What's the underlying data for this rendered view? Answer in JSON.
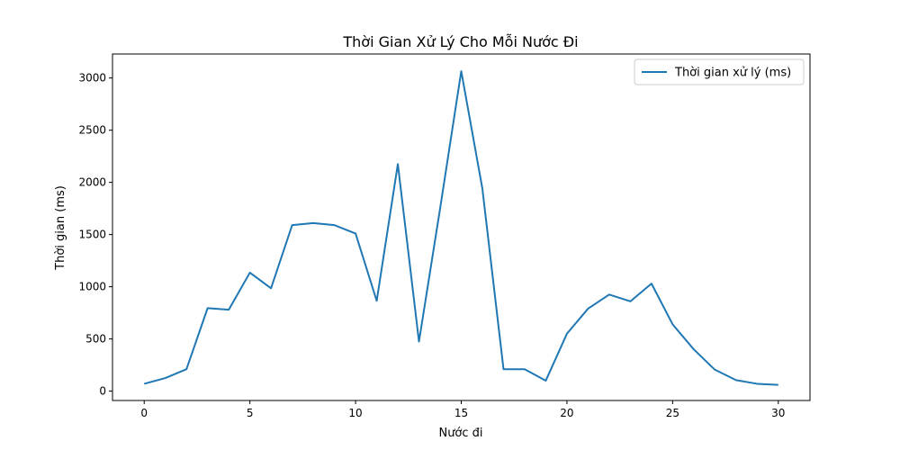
{
  "chart_data": {
    "type": "line",
    "title": "Thời Gian Xử Lý Cho Mỗi Nước Đi",
    "xlabel": "Nước đi",
    "ylabel": "Thời gian (ms)",
    "xlim": [
      -1.5,
      31.5
    ],
    "ylim": [
      -90,
      3230
    ],
    "xticks": [
      0,
      5,
      10,
      15,
      20,
      25,
      30
    ],
    "yticks": [
      0,
      500,
      1000,
      1500,
      2000,
      2500,
      3000
    ],
    "grid": false,
    "legend_position": "top-right",
    "series": [
      {
        "name": "Thời gian xử lý (ms)",
        "color": "#1f77b4",
        "x": [
          0,
          1,
          2,
          3,
          4,
          5,
          6,
          7,
          8,
          9,
          10,
          11,
          12,
          13,
          14,
          15,
          16,
          17,
          18,
          19,
          20,
          21,
          22,
          23,
          24,
          25,
          26,
          27,
          28,
          29,
          30
        ],
        "values": [
          70,
          125,
          210,
          795,
          780,
          1135,
          985,
          1590,
          1610,
          1590,
          1510,
          865,
          2175,
          475,
          1750,
          3065,
          1940,
          210,
          210,
          100,
          550,
          790,
          925,
          860,
          1030,
          640,
          400,
          205,
          105,
          70,
          60
        ]
      }
    ]
  }
}
